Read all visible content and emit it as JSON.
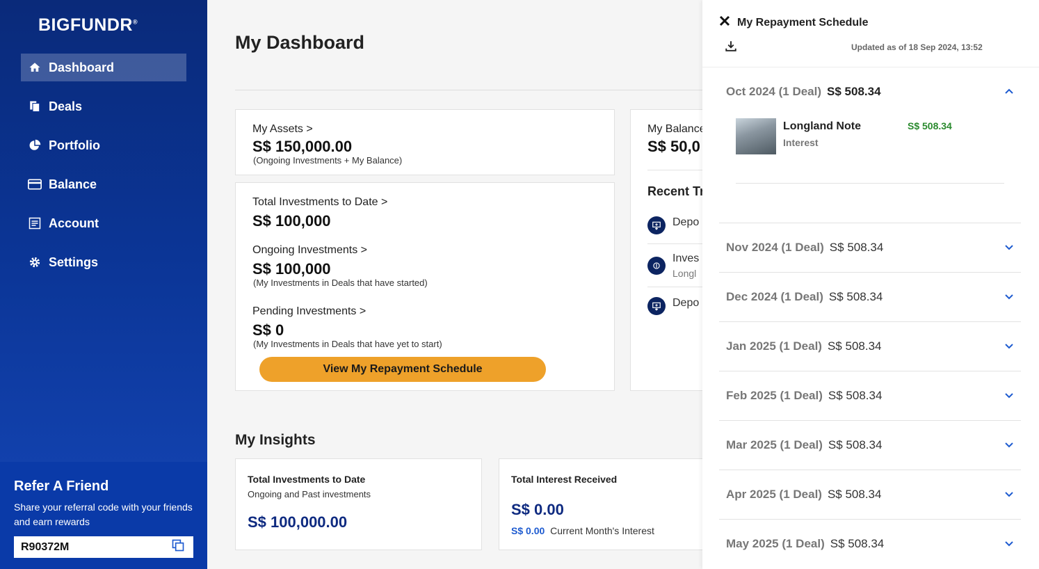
{
  "brand": {
    "logo": "BIGFUNDR",
    "trademark": "®"
  },
  "sidebar": {
    "items": [
      {
        "label": "Dashboard",
        "icon": "home-icon",
        "active": true
      },
      {
        "label": "Deals",
        "icon": "documents-icon"
      },
      {
        "label": "Portfolio",
        "icon": "pie-chart-icon"
      },
      {
        "label": "Balance",
        "icon": "card-icon"
      },
      {
        "label": "Account",
        "icon": "account-icon"
      },
      {
        "label": "Settings",
        "icon": "gear-icon"
      }
    ],
    "refer": {
      "title": "Refer A Friend",
      "text": "Share your referral code with your friends and earn rewards",
      "code": "R90372M"
    }
  },
  "main": {
    "title": "My Dashboard",
    "assets": {
      "label": "My Assets >",
      "value": "S$ 150,000.00",
      "note": "(Ongoing Investments + My Balance)"
    },
    "total_investments": {
      "label": "Total Investments to Date >",
      "value": "S$ 100,000"
    },
    "ongoing": {
      "label": "Ongoing Investments >",
      "value": "S$ 100,000",
      "note": "(My Investments in Deals that have started)"
    },
    "pending": {
      "label": "Pending Investments >",
      "value": "S$ 0",
      "note": "(My Investments in Deals that have yet to start)"
    },
    "repay_button": "View My Repayment Schedule",
    "balance": {
      "label": "My Balance",
      "value": "S$ 50,0"
    },
    "recent": {
      "title": "Recent Tr",
      "items": [
        {
          "label": "Depo",
          "sub": ""
        },
        {
          "label": "Inves",
          "sub": "Longl"
        },
        {
          "label": "Depo",
          "sub": ""
        }
      ]
    },
    "insights": {
      "title": "My Insights",
      "total": {
        "title": "Total Investments to Date",
        "sub": "Ongoing and Past investments",
        "value": "S$ 100,000.00"
      },
      "interest": {
        "title": "Total Interest Received",
        "value": "S$ 0.00",
        "month_value": "S$ 0.00",
        "month_label": "Current Month's Interest"
      }
    }
  },
  "drawer": {
    "title": "My Repayment Schedule",
    "updated": "Updated as of 18 Sep 2024, 13:52",
    "months": [
      {
        "label": "Oct 2024 (1 Deal)",
        "amount": "S$ 508.34",
        "expanded": true
      },
      {
        "label": "Nov 2024 (1 Deal)",
        "amount": "S$ 508.34"
      },
      {
        "label": "Dec 2024 (1 Deal)",
        "amount": "S$ 508.34"
      },
      {
        "label": "Jan 2025 (1 Deal)",
        "amount": "S$ 508.34"
      },
      {
        "label": "Feb 2025 (1 Deal)",
        "amount": "S$ 508.34"
      },
      {
        "label": "Mar 2025 (1 Deal)",
        "amount": "S$ 508.34"
      },
      {
        "label": "Apr 2025 (1 Deal)",
        "amount": "S$ 508.34"
      },
      {
        "label": "May 2025 (1 Deal)",
        "amount": "S$ 508.34"
      }
    ],
    "deal": {
      "name": "Longland Note",
      "type": "Interest",
      "amount": "S$ 508.34"
    }
  },
  "colors": {
    "sidebar": "#0b3596",
    "accent": "#eea12a",
    "positive": "#2a8a2e",
    "navy": "#0e2a80"
  }
}
